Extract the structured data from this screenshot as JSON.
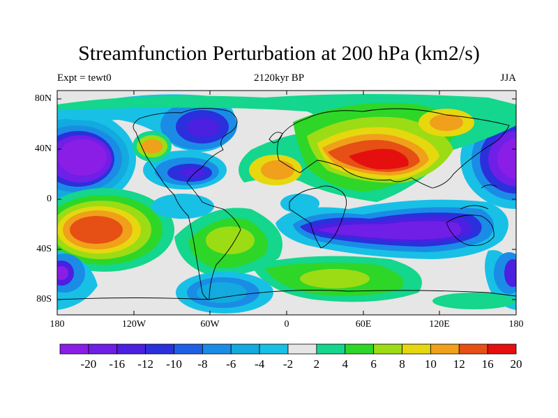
{
  "title": "Streamfunction Perturbation at 200 hPa (km2/s)",
  "subtitle_left": "Expt = tewt0",
  "subtitle_center": "2120kyr BP",
  "subtitle_right": "JJA",
  "lat_labels": [
    "80N",
    "40N",
    "0",
    "40S",
    "80S"
  ],
  "lon_labels": [
    "180",
    "120W",
    "60W",
    "0",
    "60E",
    "120E",
    "180"
  ],
  "colorbar": {
    "labels": [
      "-20",
      "-16",
      "-12",
      "-10",
      "-8",
      "-6",
      "-4",
      "-2",
      "2",
      "4",
      "6",
      "8",
      "10",
      "12",
      "16",
      "20"
    ],
    "colors": [
      "#8a1ee6",
      "#6f1fe6",
      "#4b20e0",
      "#2a30dc",
      "#1e5fe6",
      "#1a8ce6",
      "#12aadf",
      "#18c0e6",
      "#e6e6e6",
      "#14d68c",
      "#2ed628",
      "#9cdc14",
      "#e6d70f",
      "#f0a01a",
      "#e65014",
      "#e60f0f"
    ]
  },
  "colors": {
    "ocean_neutral": "#e6e6e6",
    "coast": "#000000"
  }
}
